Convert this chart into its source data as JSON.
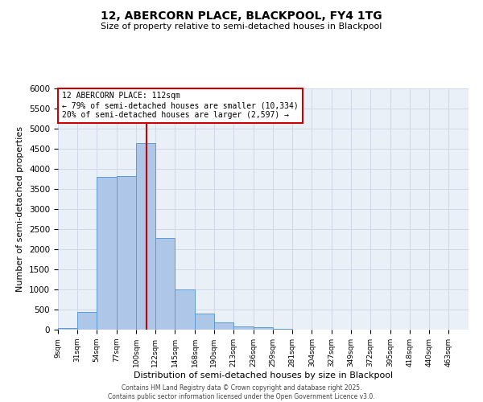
{
  "title1": "12, ABERCORN PLACE, BLACKPOOL, FY4 1TG",
  "title2": "Size of property relative to semi-detached houses in Blackpool",
  "xlabel": "Distribution of semi-detached houses by size in Blackpool",
  "ylabel": "Number of semi-detached properties",
  "bin_labels": [
    "9sqm",
    "31sqm",
    "54sqm",
    "77sqm",
    "100sqm",
    "122sqm",
    "145sqm",
    "168sqm",
    "190sqm",
    "213sqm",
    "236sqm",
    "259sqm",
    "281sqm",
    "304sqm",
    "327sqm",
    "349sqm",
    "372sqm",
    "395sqm",
    "418sqm",
    "440sqm",
    "463sqm"
  ],
  "bar_heights": [
    50,
    450,
    3800,
    3820,
    4650,
    2290,
    1010,
    400,
    185,
    90,
    55,
    20,
    10,
    0,
    0,
    0,
    0,
    0,
    0,
    0,
    0
  ],
  "bar_color": "#aec6e8",
  "bar_edge_color": "#5b9bd5",
  "vline_x": 112,
  "vline_color": "#cc0000",
  "annotation_title": "12 ABERCORN PLACE: 112sqm",
  "annotation_line1": "← 79% of semi-detached houses are smaller (10,334)",
  "annotation_line2": "20% of semi-detached houses are larger (2,597) →",
  "annotation_box_color": "#ffffff",
  "annotation_box_edge": "#cc0000",
  "ylim": [
    0,
    6000
  ],
  "yticks": [
    0,
    500,
    1000,
    1500,
    2000,
    2500,
    3000,
    3500,
    4000,
    4500,
    5000,
    5500,
    6000
  ],
  "bin_edges": [
    9,
    31,
    54,
    77,
    100,
    122,
    145,
    168,
    190,
    213,
    236,
    259,
    281,
    304,
    327,
    349,
    372,
    395,
    418,
    440,
    463,
    486
  ],
  "grid_color": "#d0d8e8",
  "bg_color": "#eaf0f8",
  "footer1": "Contains HM Land Registry data © Crown copyright and database right 2025.",
  "footer2": "Contains public sector information licensed under the Open Government Licence v3.0."
}
